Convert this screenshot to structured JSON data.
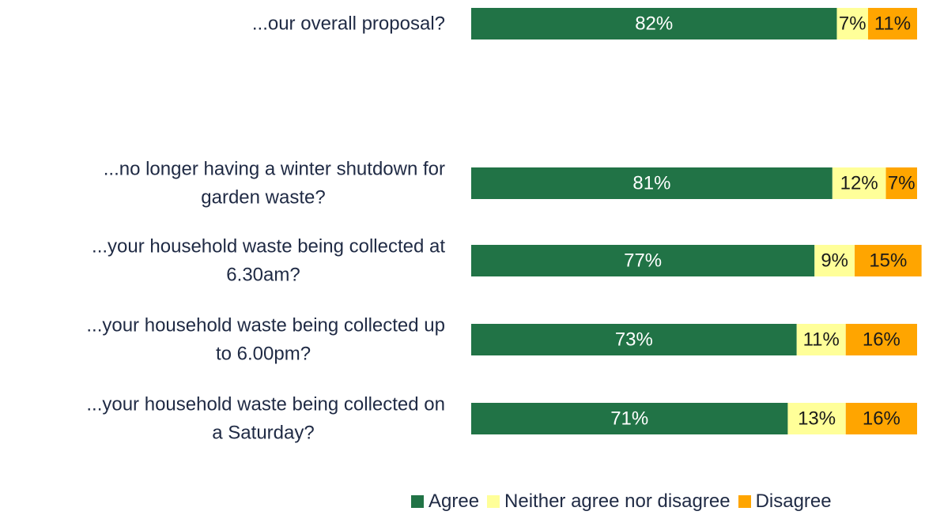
{
  "chart_data": {
    "type": "bar",
    "orientation": "horizontal",
    "stacked": true,
    "percent_stacked": true,
    "categories": [
      [
        "...our overall proposal?"
      ],
      [
        "...no longer having a winter shutdown for",
        "garden waste?"
      ],
      [
        "...your household waste being collected at",
        "6.30am?"
      ],
      [
        "...your household waste being collected up",
        "to 6.00pm?"
      ],
      [
        "...your household waste being collected on",
        "a Saturday?"
      ]
    ],
    "series": [
      {
        "name": "Agree",
        "color": "#217346",
        "label_color": "#ffffff",
        "values": [
          82,
          81,
          77,
          73,
          71
        ],
        "labels": [
          "82%",
          "81%",
          "77%",
          "73%",
          "71%"
        ]
      },
      {
        "name": "Neither agree nor disagree",
        "color": "#ffff99",
        "label_color": "#1a1a1a",
        "values": [
          7,
          12,
          9,
          11,
          13
        ],
        "labels": [
          "7%",
          "12%",
          "9%",
          "11%",
          "13%"
        ]
      },
      {
        "name": "Disagree",
        "color": "#ffa500",
        "label_color": "#1a1a1a",
        "values": [
          11,
          7,
          15,
          16,
          16
        ],
        "labels": [
          "11%",
          "7%",
          "15%",
          "16%",
          "16%"
        ]
      }
    ],
    "xlim": [
      0,
      100
    ],
    "grid": false,
    "legend_position": "bottom-right"
  }
}
